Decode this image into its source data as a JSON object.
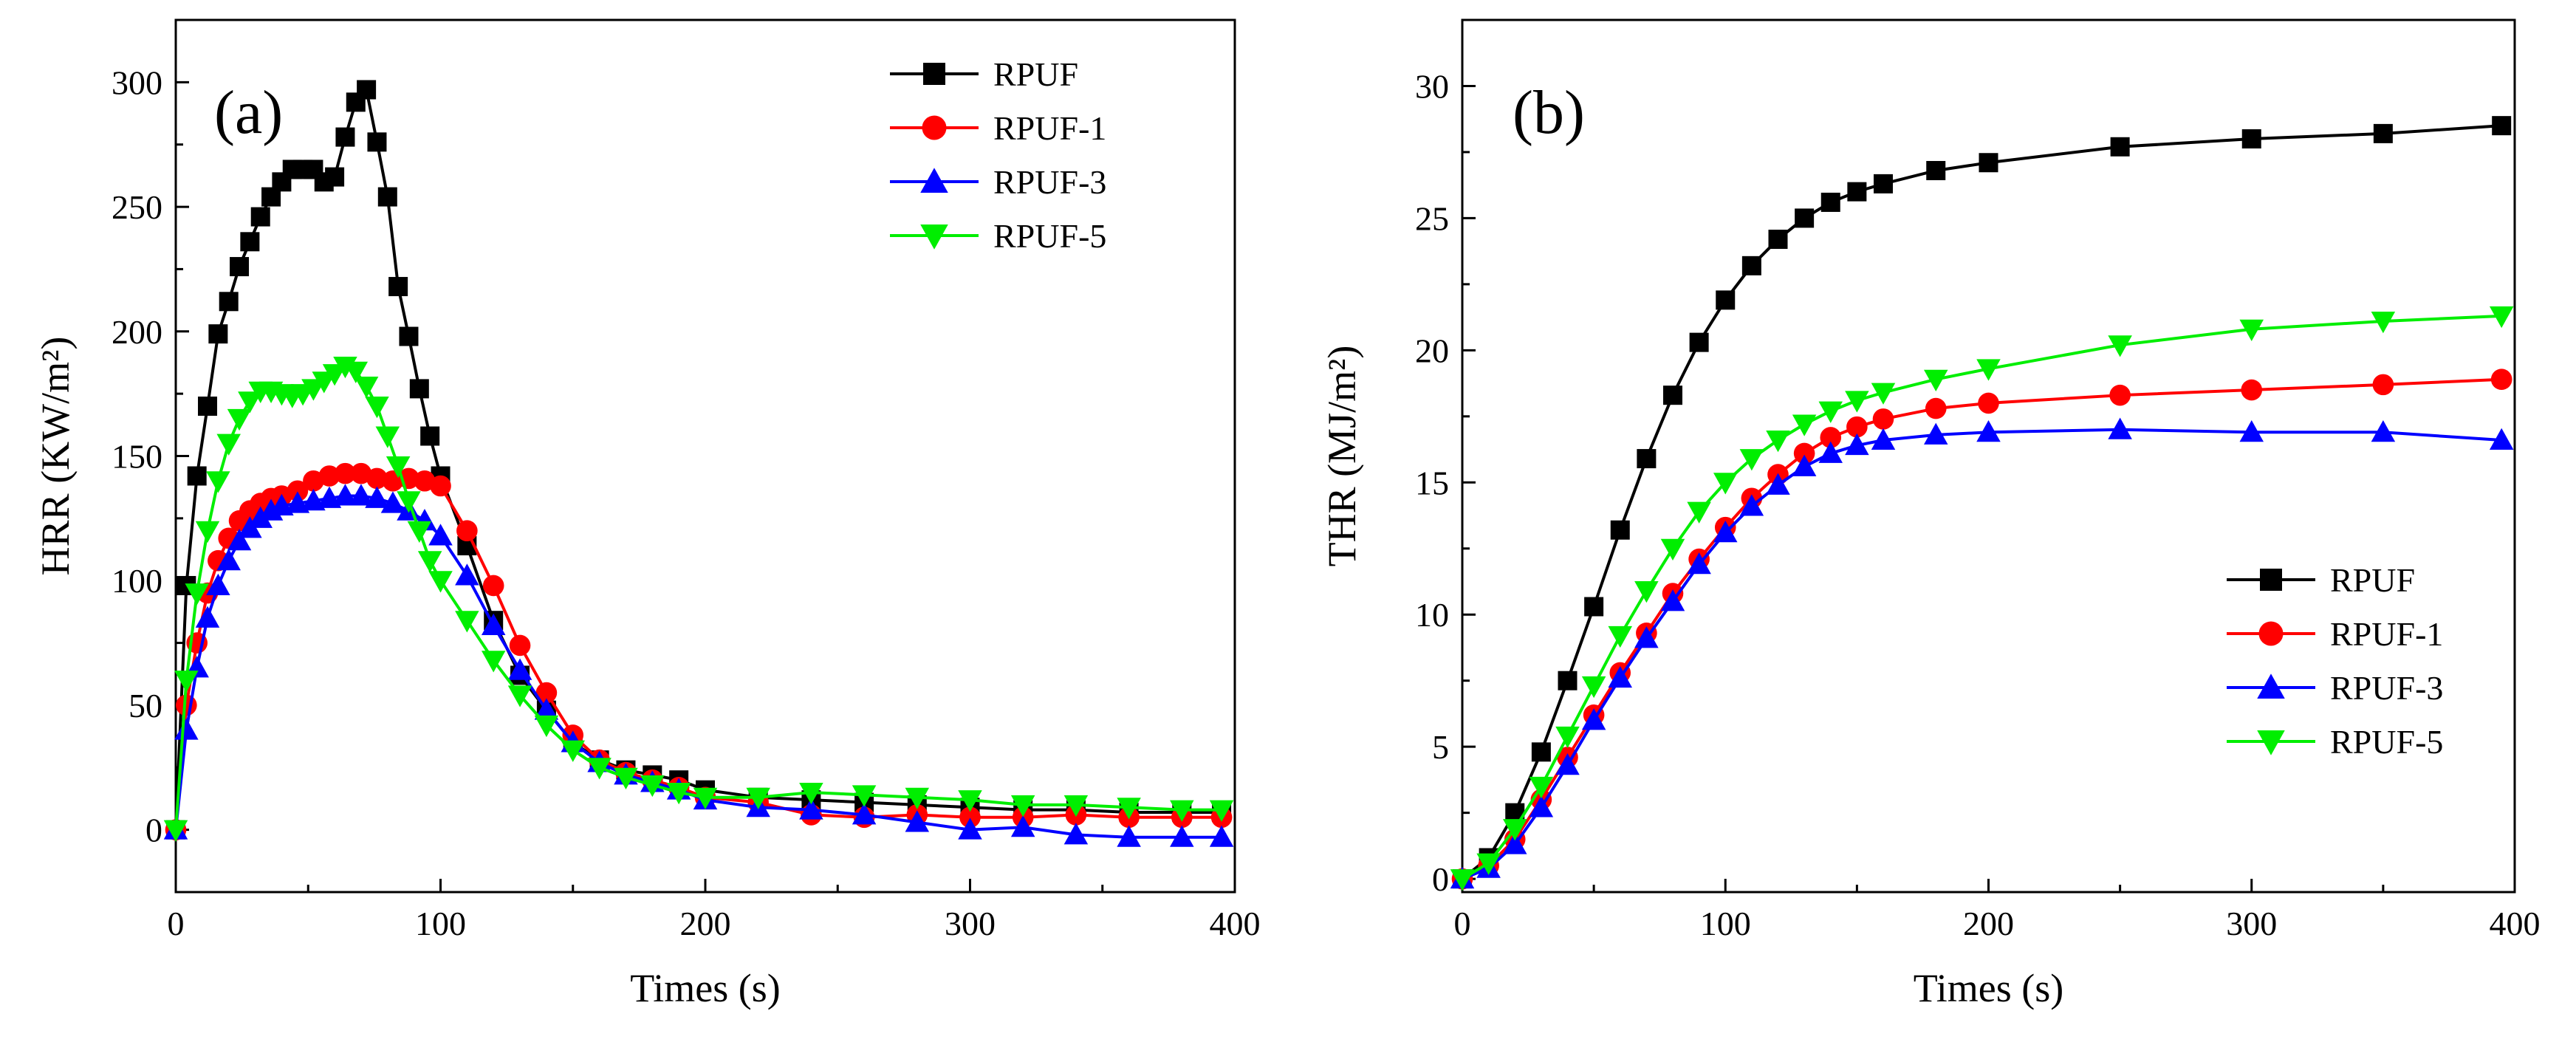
{
  "chart_data": [
    {
      "type": "line",
      "panel_label": "(a)",
      "title": "",
      "xlabel": "Times (s)",
      "ylabel": "HRR (KW/m²)",
      "xlim": [
        0,
        400
      ],
      "ylim": [
        -25,
        325
      ],
      "xticks": [
        0,
        100,
        200,
        300,
        400
      ],
      "yticks": [
        0,
        50,
        100,
        150,
        200,
        250,
        300
      ],
      "legend_position": "top-right",
      "series": [
        {
          "name": "RPUF",
          "color": "#000000",
          "marker": "square",
          "x": [
            0,
            4,
            8,
            12,
            16,
            20,
            24,
            28,
            32,
            36,
            40,
            44,
            48,
            52,
            56,
            60,
            64,
            68,
            72,
            76,
            80,
            84,
            88,
            92,
            96,
            100,
            110,
            120,
            130,
            140,
            150,
            160,
            170,
            180,
            190,
            200,
            220,
            240,
            260,
            280,
            300,
            320,
            340,
            360,
            380,
            395
          ],
          "y": [
            0,
            98,
            142,
            170,
            199,
            212,
            226,
            236,
            246,
            254,
            260,
            265,
            265,
            265,
            260,
            262,
            278,
            292,
            297,
            276,
            254,
            218,
            198,
            177,
            158,
            142,
            114,
            84,
            62,
            48,
            35,
            28,
            24,
            22,
            20,
            16,
            13,
            12,
            11,
            10,
            9,
            8,
            8,
            7,
            7,
            7
          ]
        },
        {
          "name": "RPUF-1",
          "color": "#ff0000",
          "marker": "circle",
          "x": [
            0,
            4,
            8,
            12,
            16,
            20,
            24,
            28,
            32,
            36,
            40,
            46,
            52,
            58,
            64,
            70,
            76,
            82,
            88,
            94,
            100,
            110,
            120,
            130,
            140,
            150,
            160,
            170,
            180,
            190,
            200,
            220,
            240,
            260,
            280,
            300,
            320,
            340,
            360,
            380,
            395
          ],
          "y": [
            0,
            50,
            75,
            95,
            108,
            117,
            124,
            128,
            131,
            133,
            134,
            136,
            140,
            142,
            143,
            143,
            141,
            140,
            141,
            140,
            138,
            120,
            98,
            74,
            55,
            38,
            28,
            23,
            20,
            17,
            13,
            11,
            6,
            5,
            6,
            5,
            5,
            6,
            5,
            5,
            5
          ]
        },
        {
          "name": "RPUF-3",
          "color": "#0000ff",
          "marker": "triangle-up",
          "x": [
            0,
            4,
            8,
            12,
            16,
            20,
            24,
            28,
            32,
            36,
            40,
            46,
            52,
            58,
            64,
            70,
            76,
            82,
            88,
            94,
            100,
            110,
            120,
            130,
            140,
            150,
            160,
            170,
            180,
            190,
            200,
            220,
            240,
            260,
            280,
            300,
            320,
            340,
            360,
            380,
            395
          ],
          "y": [
            0,
            40,
            65,
            85,
            98,
            108,
            116,
            121,
            125,
            128,
            130,
            131,
            132,
            133,
            134,
            134,
            133,
            131,
            128,
            124,
            118,
            102,
            82,
            64,
            48,
            35,
            27,
            22,
            19,
            16,
            12,
            9,
            8,
            6,
            3,
            0,
            1,
            -2,
            -3,
            -3,
            -3
          ]
        },
        {
          "name": "RPUF-5",
          "color": "#00ee00",
          "marker": "triangle-down",
          "x": [
            0,
            4,
            8,
            12,
            16,
            20,
            24,
            28,
            32,
            36,
            40,
            44,
            48,
            52,
            56,
            60,
            64,
            68,
            72,
            76,
            80,
            84,
            88,
            92,
            96,
            100,
            110,
            120,
            130,
            140,
            150,
            160,
            170,
            180,
            190,
            200,
            220,
            240,
            260,
            280,
            300,
            320,
            340,
            360,
            380,
            395
          ],
          "y": [
            0,
            60,
            95,
            120,
            140,
            155,
            165,
            172,
            176,
            176,
            175,
            174,
            175,
            177,
            180,
            183,
            186,
            184,
            178,
            170,
            158,
            146,
            132,
            120,
            108,
            100,
            84,
            68,
            54,
            42,
            32,
            25,
            21,
            18,
            15,
            13,
            13,
            15,
            14,
            13,
            12,
            10,
            10,
            9,
            8,
            8
          ]
        }
      ]
    },
    {
      "type": "line",
      "panel_label": "(b)",
      "title": "",
      "xlabel": "Times (s)",
      "ylabel": "THR (MJ/m²)",
      "xlim": [
        0,
        400
      ],
      "ylim": [
        -0.5,
        32.5
      ],
      "xticks": [
        0,
        100,
        200,
        300,
        400
      ],
      "yticks": [
        0,
        5,
        10,
        15,
        20,
        25,
        30
      ],
      "legend_position": "bottom-right",
      "series": [
        {
          "name": "RPUF",
          "color": "#000000",
          "marker": "square",
          "x": [
            0,
            10,
            20,
            30,
            40,
            50,
            60,
            70,
            80,
            90,
            100,
            110,
            120,
            130,
            140,
            150,
            160,
            180,
            200,
            250,
            300,
            350,
            395
          ],
          "y": [
            0,
            0.8,
            2.5,
            4.8,
            7.5,
            10.3,
            13.2,
            15.9,
            18.3,
            20.3,
            21.9,
            23.2,
            24.2,
            25.0,
            25.6,
            26.0,
            26.3,
            26.8,
            27.1,
            27.7,
            28.0,
            28.2,
            28.5
          ]
        },
        {
          "name": "RPUF-1",
          "color": "#ff0000",
          "marker": "circle",
          "x": [
            0,
            10,
            20,
            30,
            40,
            50,
            60,
            70,
            80,
            90,
            100,
            110,
            120,
            130,
            140,
            150,
            160,
            180,
            200,
            250,
            300,
            350,
            395
          ],
          "y": [
            0,
            0.5,
            1.5,
            3.0,
            4.6,
            6.2,
            7.8,
            9.3,
            10.8,
            12.1,
            13.3,
            14.4,
            15.3,
            16.1,
            16.7,
            17.1,
            17.4,
            17.8,
            18.0,
            18.3,
            18.5,
            18.7,
            18.9
          ]
        },
        {
          "name": "RPUF-3",
          "color": "#0000ff",
          "marker": "triangle-up",
          "x": [
            0,
            10,
            20,
            30,
            40,
            50,
            60,
            70,
            80,
            90,
            100,
            110,
            120,
            130,
            140,
            150,
            160,
            180,
            200,
            250,
            300,
            350,
            395
          ],
          "y": [
            0,
            0.4,
            1.3,
            2.7,
            4.3,
            6.0,
            7.6,
            9.1,
            10.5,
            11.9,
            13.1,
            14.1,
            14.9,
            15.6,
            16.1,
            16.4,
            16.6,
            16.8,
            16.9,
            17.0,
            16.9,
            16.9,
            16.6
          ]
        },
        {
          "name": "RPUF-5",
          "color": "#00ee00",
          "marker": "triangle-down",
          "x": [
            0,
            10,
            20,
            30,
            40,
            50,
            60,
            70,
            80,
            90,
            100,
            110,
            120,
            130,
            140,
            150,
            160,
            180,
            200,
            250,
            300,
            350,
            395
          ],
          "y": [
            0,
            0.6,
            1.9,
            3.5,
            5.4,
            7.3,
            9.2,
            10.9,
            12.5,
            13.9,
            15.0,
            15.9,
            16.6,
            17.2,
            17.7,
            18.1,
            18.4,
            18.9,
            19.3,
            20.2,
            20.8,
            21.1,
            21.3
          ]
        }
      ]
    }
  ]
}
